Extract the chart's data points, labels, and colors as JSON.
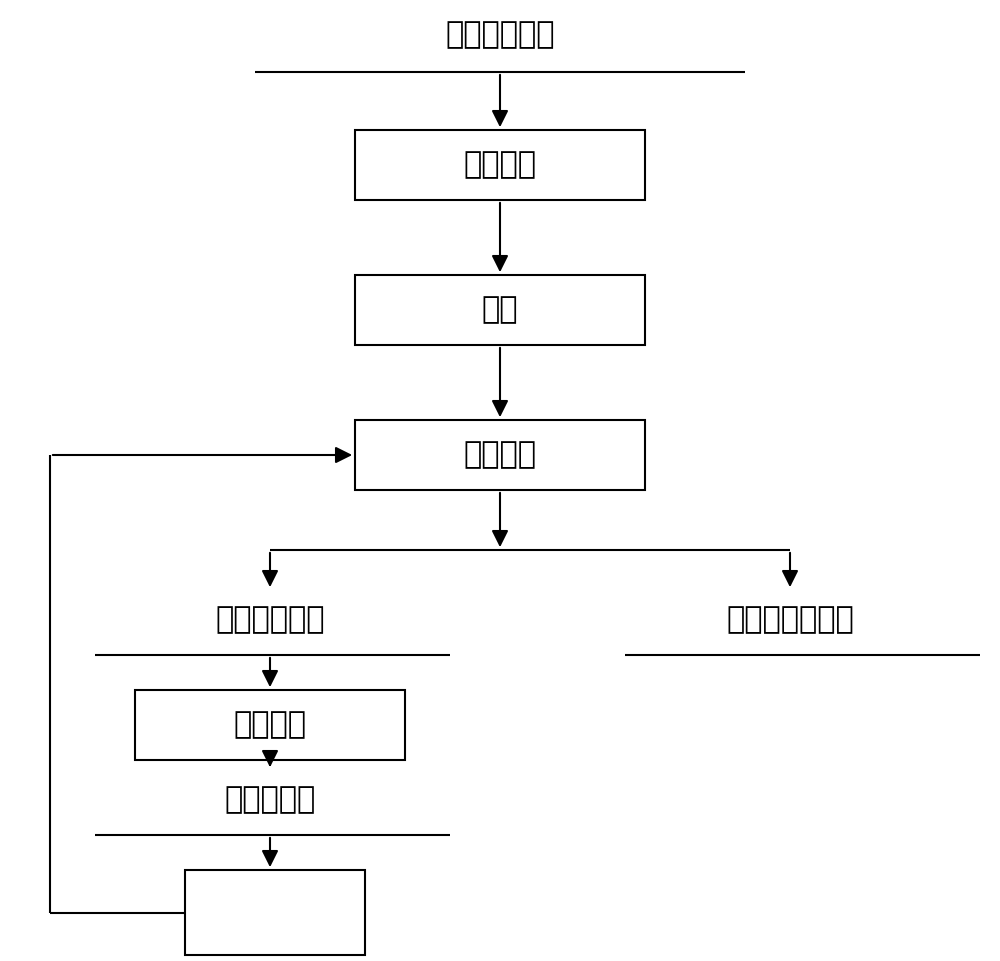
{
  "title_text": "粗锨酸銅料液",
  "box1_text": "硫化配置",
  "box2_text": "静置",
  "box3_text": "梯级吸附",
  "label_left": "吸附饱和树脂",
  "box4_text": "梯级解吸",
  "label_left2": "解吸好树脂",
  "label_right": "高纯锨酸銅料液",
  "line_color": "#000000",
  "bg_color": "#ffffff",
  "font_size": 22,
  "arrow_scale": 25,
  "lw": 1.5
}
